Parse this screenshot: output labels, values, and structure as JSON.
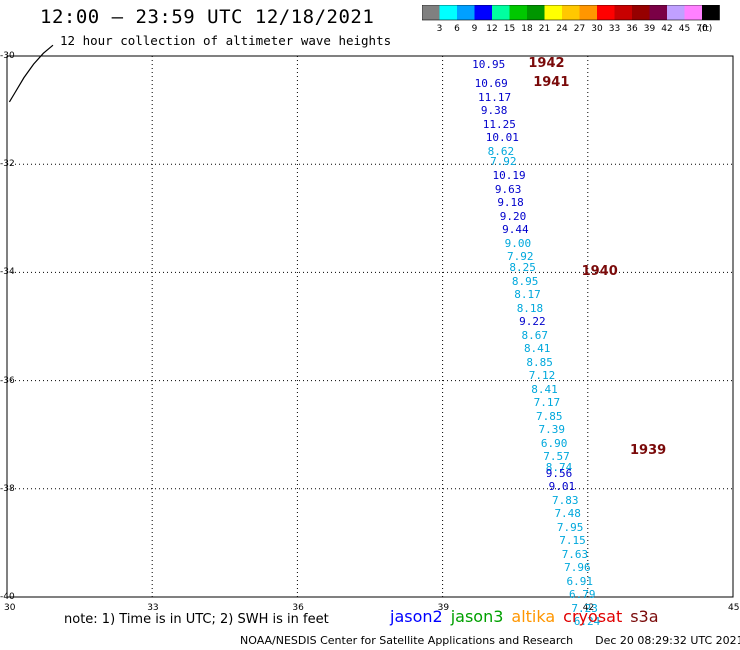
{
  "header": {
    "title": "12:00 – 23:59 UTC 12/18/2021",
    "subtitle": "12 hour collection of altimeter wave heights"
  },
  "colorbar": {
    "colors": [
      "#808080",
      "#00ffff",
      "#00a0ff",
      "#0000ff",
      "#00ffa0",
      "#00c800",
      "#009600",
      "#ffff00",
      "#ffc800",
      "#ff9600",
      "#ff0000",
      "#c80000",
      "#960000",
      "#7a0046",
      "#c0a0ff",
      "#ff80ff",
      "#000000"
    ],
    "labels": [
      "3",
      "6",
      "9",
      "12",
      "15",
      "18",
      "21",
      "24",
      "27",
      "30",
      "33",
      "36",
      "39",
      "42",
      "45",
      "70"
    ],
    "unit": "(ft)"
  },
  "axes": {
    "x_ticks": [
      "30",
      "33",
      "36",
      "39",
      "42",
      "45"
    ],
    "y_ticks": [
      "-30",
      "-32",
      "-34",
      "-36",
      "-38",
      "-40"
    ]
  },
  "chart_data": {
    "type": "scatter",
    "x_range": [
      30,
      45
    ],
    "y_range": [
      -40,
      -30
    ],
    "passes": [
      {
        "label": "1942",
        "x": 40.4,
        "y": -30.15
      },
      {
        "label": "1941",
        "x": 40.5,
        "y": -30.5
      },
      {
        "label": "1940",
        "x": 41.5,
        "y": -34.0
      },
      {
        "label": "1939",
        "x": 42.5,
        "y": -37.3
      }
    ],
    "points": [
      {
        "v": "10.95",
        "x": 39.9,
        "y": -30.15,
        "c": "#0000cc"
      },
      {
        "v": "10.69",
        "x": 39.95,
        "y": -30.5,
        "c": "#0000cc"
      },
      {
        "v": "11.17",
        "x": 40.02,
        "y": -30.75,
        "c": "#0000cc"
      },
      {
        "v": "9.38",
        "x": 40.08,
        "y": -31.0,
        "c": "#0000cc"
      },
      {
        "v": "11.25",
        "x": 40.12,
        "y": -31.25,
        "c": "#0000cc"
      },
      {
        "v": "10.01",
        "x": 40.18,
        "y": -31.5,
        "c": "#0000cc"
      },
      {
        "v": "8.62",
        "x": 40.22,
        "y": -31.75,
        "c": "#00a8dc"
      },
      {
        "v": "7.92",
        "x": 40.27,
        "y": -31.95,
        "c": "#00a8dc"
      },
      {
        "v": "10.19",
        "x": 40.32,
        "y": -32.2,
        "c": "#0000cc"
      },
      {
        "v": "9.63",
        "x": 40.37,
        "y": -32.45,
        "c": "#0000cc"
      },
      {
        "v": "9.18",
        "x": 40.42,
        "y": -32.7,
        "c": "#0000cc"
      },
      {
        "v": "9.20",
        "x": 40.47,
        "y": -32.95,
        "c": "#0000cc"
      },
      {
        "v": "9.44",
        "x": 40.52,
        "y": -33.2,
        "c": "#0000cc"
      },
      {
        "v": "9.00",
        "x": 40.57,
        "y": -33.45,
        "c": "#00a8dc"
      },
      {
        "v": "7.92",
        "x": 40.62,
        "y": -33.7,
        "c": "#00a8dc"
      },
      {
        "v": "8.25",
        "x": 40.67,
        "y": -33.9,
        "c": "#00a8dc"
      },
      {
        "v": "8.95",
        "x": 40.72,
        "y": -34.15,
        "c": "#00a8dc"
      },
      {
        "v": "8.17",
        "x": 40.77,
        "y": -34.4,
        "c": "#00a8dc"
      },
      {
        "v": "8.18",
        "x": 40.82,
        "y": -34.65,
        "c": "#00a8dc"
      },
      {
        "v": "9.22",
        "x": 40.87,
        "y": -34.9,
        "c": "#0000cc"
      },
      {
        "v": "8.67",
        "x": 40.92,
        "y": -35.15,
        "c": "#00a8dc"
      },
      {
        "v": "8.41",
        "x": 40.97,
        "y": -35.4,
        "c": "#00a8dc"
      },
      {
        "v": "8.85",
        "x": 41.02,
        "y": -35.65,
        "c": "#00a8dc"
      },
      {
        "v": "7.12",
        "x": 41.07,
        "y": -35.9,
        "c": "#00a8dc"
      },
      {
        "v": "8.41",
        "x": 41.12,
        "y": -36.15,
        "c": "#00a8dc"
      },
      {
        "v": "7.17",
        "x": 41.17,
        "y": -36.4,
        "c": "#00a8dc"
      },
      {
        "v": "7.85",
        "x": 41.22,
        "y": -36.65,
        "c": "#00a8dc"
      },
      {
        "v": "7.39",
        "x": 41.27,
        "y": -36.9,
        "c": "#00a8dc"
      },
      {
        "v": "6.90",
        "x": 41.32,
        "y": -37.15,
        "c": "#00a8dc"
      },
      {
        "v": "7.57",
        "x": 41.37,
        "y": -37.4,
        "c": "#00a8dc"
      },
      {
        "v": "8.74",
        "x": 41.42,
        "y": -37.6,
        "c": "#00a8dc"
      },
      {
        "v": "9.56",
        "x": 41.42,
        "y": -37.7,
        "c": "#0000cc"
      },
      {
        "v": "9.01",
        "x": 41.48,
        "y": -37.95,
        "c": "#0000cc"
      },
      {
        "v": "7.83",
        "x": 41.55,
        "y": -38.2,
        "c": "#00a8dc"
      },
      {
        "v": "7.48",
        "x": 41.6,
        "y": -38.45,
        "c": "#00a8dc"
      },
      {
        "v": "7.95",
        "x": 41.65,
        "y": -38.7,
        "c": "#00a8dc"
      },
      {
        "v": "7.15",
        "x": 41.7,
        "y": -38.95,
        "c": "#00a8dc"
      },
      {
        "v": "7.63",
        "x": 41.75,
        "y": -39.2,
        "c": "#00a8dc"
      },
      {
        "v": "7.96",
        "x": 41.8,
        "y": -39.45,
        "c": "#00a8dc"
      },
      {
        "v": "6.91",
        "x": 41.85,
        "y": -39.7,
        "c": "#00a8dc"
      },
      {
        "v": "6.79",
        "x": 41.9,
        "y": -39.95,
        "c": "#00a8dc"
      },
      {
        "v": "7.23",
        "x": 41.95,
        "y": -40.2,
        "c": "#00a8dc"
      },
      {
        "v": "6.24",
        "x": 42.0,
        "y": -40.45,
        "c": "#00a8dc"
      }
    ],
    "coastline": [
      [
        30.05,
        -30.85
      ],
      [
        30.15,
        -30.7
      ],
      [
        30.35,
        -30.4
      ],
      [
        30.55,
        -30.15
      ],
      [
        30.75,
        -29.95
      ],
      [
        30.95,
        -29.8
      ]
    ]
  },
  "note": "note:  1) Time is in UTC;  2) SWH is in feet",
  "legend": [
    {
      "name": "jason2",
      "color": "#0000ff"
    },
    {
      "name": "jason3",
      "color": "#00a000"
    },
    {
      "name": "altika",
      "color": "#ff9600"
    },
    {
      "name": "cryosat",
      "color": "#e00000"
    },
    {
      "name": "s3a",
      "color": "#7a0a0a"
    }
  ],
  "footer": {
    "credit": "NOAA/NESDIS Center for Satellite Applications and Research",
    "timestamp": "Dec 20 08:29:32 UTC 2021"
  }
}
